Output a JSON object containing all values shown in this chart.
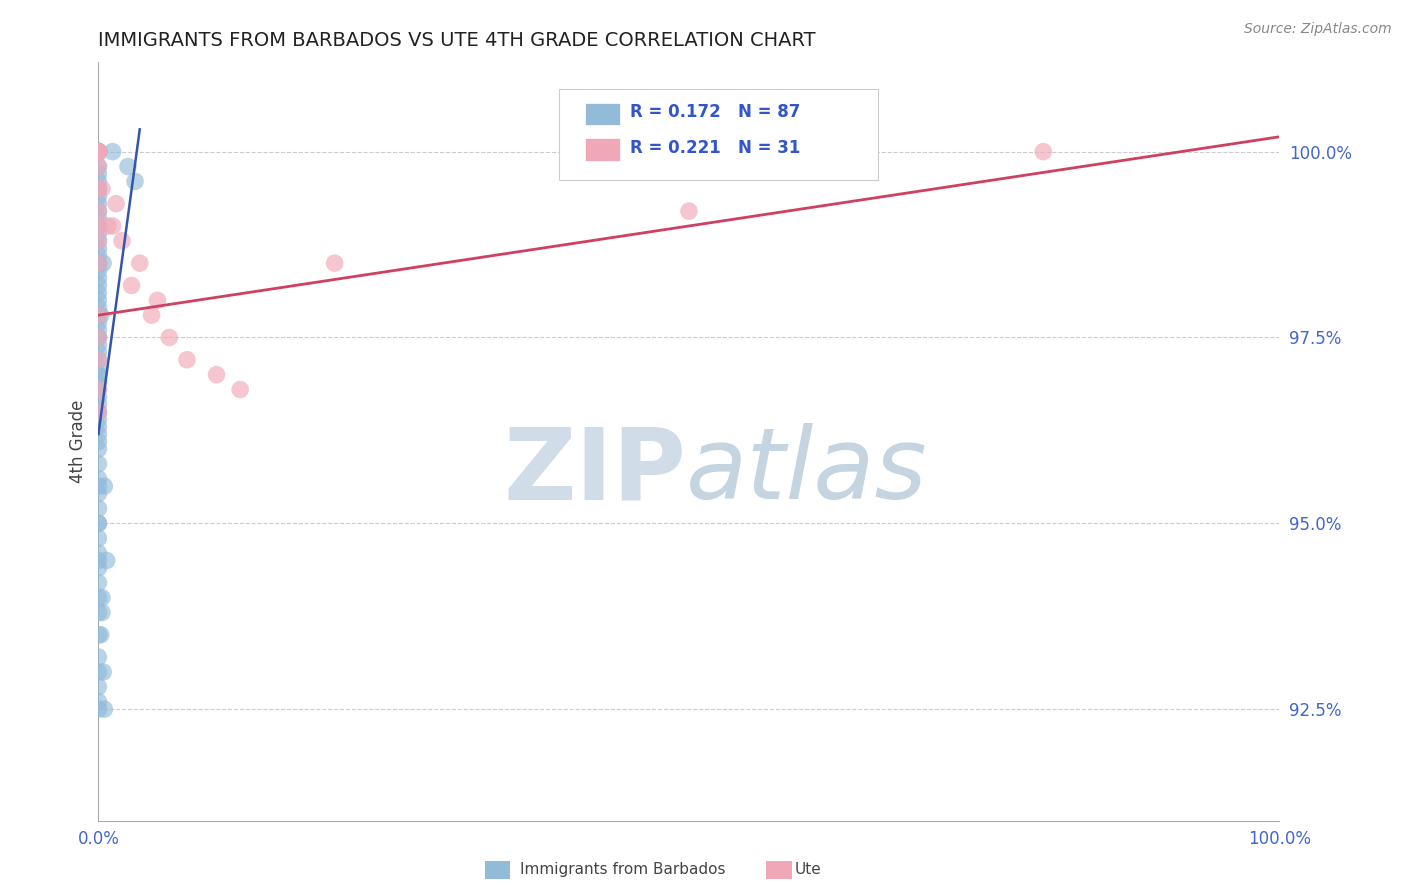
{
  "title": "IMMIGRANTS FROM BARBADOS VS UTE 4TH GRADE CORRELATION CHART",
  "source": "Source: ZipAtlas.com",
  "ylabel": "4th Grade",
  "xlim": [
    0.0,
    100.0
  ],
  "ylim": [
    91.0,
    101.2
  ],
  "yticks": [
    92.5,
    95.0,
    97.5,
    100.0
  ],
  "ytick_labels": [
    "92.5%",
    "95.0%",
    "97.5%",
    "100.0%"
  ],
  "xticks": [
    0.0,
    100.0
  ],
  "xtick_labels": [
    "0.0%",
    "100.0%"
  ],
  "legend_r1": "R = 0.172",
  "legend_n1": "N = 87",
  "legend_r2": "R = 0.221",
  "legend_n2": "N = 31",
  "legend_label1": "Immigrants from Barbados",
  "legend_label2": "Ute",
  "blue_color": "#92BAD9",
  "pink_color": "#F0A8B8",
  "blue_line_color": "#3355AA",
  "pink_line_color": "#D04060",
  "blue_scatter_x": [
    0.0,
    0.0,
    0.0,
    0.0,
    0.0,
    0.0,
    0.0,
    0.0,
    0.0,
    0.0,
    0.0,
    0.0,
    0.0,
    0.0,
    0.0,
    0.0,
    0.0,
    0.0,
    0.0,
    0.0,
    0.0,
    0.0,
    0.0,
    0.0,
    0.0,
    0.0,
    0.0,
    0.0,
    0.0,
    0.0,
    0.0,
    0.0,
    0.0,
    0.0,
    0.0,
    0.0,
    0.0,
    0.0,
    0.0,
    0.0,
    0.0,
    0.0,
    0.0,
    0.0,
    0.0,
    0.0,
    0.0,
    0.0,
    0.0,
    0.0,
    0.0,
    0.0,
    0.0,
    0.0,
    0.0,
    0.0,
    0.0,
    0.0,
    0.0,
    0.0,
    0.0,
    0.0,
    0.0,
    0.0,
    0.0,
    0.0,
    0.0,
    0.0,
    0.0,
    0.0,
    0.0,
    0.0,
    0.0,
    0.0,
    0.0,
    1.2,
    2.5,
    3.1,
    0.4,
    0.2,
    0.5,
    0.7,
    0.3,
    0.2,
    0.4,
    0.5,
    0.3
  ],
  "blue_scatter_y": [
    100.0,
    100.0,
    100.0,
    100.0,
    100.0,
    100.0,
    100.0,
    100.0,
    100.0,
    100.0,
    100.0,
    99.8,
    99.7,
    99.6,
    99.5,
    99.4,
    99.3,
    99.2,
    99.1,
    99.0,
    98.9,
    98.8,
    98.7,
    98.6,
    98.5,
    98.4,
    98.3,
    98.2,
    98.1,
    98.0,
    97.9,
    97.8,
    97.7,
    97.6,
    97.5,
    97.4,
    97.3,
    97.2,
    97.1,
    97.0,
    96.9,
    96.8,
    96.7,
    96.6,
    96.5,
    96.4,
    96.3,
    96.2,
    96.1,
    96.0,
    95.8,
    95.6,
    95.4,
    95.2,
    95.0,
    94.8,
    94.6,
    94.4,
    94.2,
    94.0,
    93.5,
    93.0,
    92.8,
    92.6,
    92.5,
    93.2,
    93.8,
    94.5,
    95.0,
    95.5,
    96.5,
    97.0,
    97.5,
    98.5,
    99.5,
    100.0,
    99.8,
    99.6,
    98.5,
    97.8,
    95.5,
    94.5,
    94.0,
    93.5,
    93.0,
    92.5,
    93.8
  ],
  "pink_scatter_x": [
    0.0,
    0.0,
    0.0,
    0.0,
    0.0,
    0.0,
    0.0,
    0.0,
    0.0,
    0.0,
    0.0,
    0.0,
    0.0,
    0.0,
    0.0,
    1.5,
    2.0,
    3.5,
    5.0,
    6.0,
    7.5,
    10.0,
    12.0,
    0.3,
    0.8,
    4.5,
    2.8,
    1.2,
    20.0,
    50.0,
    80.0
  ],
  "pink_scatter_y": [
    100.0,
    100.0,
    100.0,
    100.0,
    99.8,
    99.5,
    99.2,
    99.0,
    98.8,
    98.5,
    97.8,
    97.5,
    97.2,
    96.8,
    96.5,
    99.3,
    98.8,
    98.5,
    98.0,
    97.5,
    97.2,
    97.0,
    96.8,
    99.5,
    99.0,
    97.8,
    98.2,
    99.0,
    98.5,
    99.2,
    100.0
  ],
  "blue_line_x0": 0.0,
  "blue_line_x1": 3.5,
  "blue_line_y0": 96.2,
  "blue_line_y1": 100.3,
  "pink_line_x0": 0.0,
  "pink_line_x1": 100.0,
  "pink_line_y0": 97.8,
  "pink_line_y1": 100.2
}
